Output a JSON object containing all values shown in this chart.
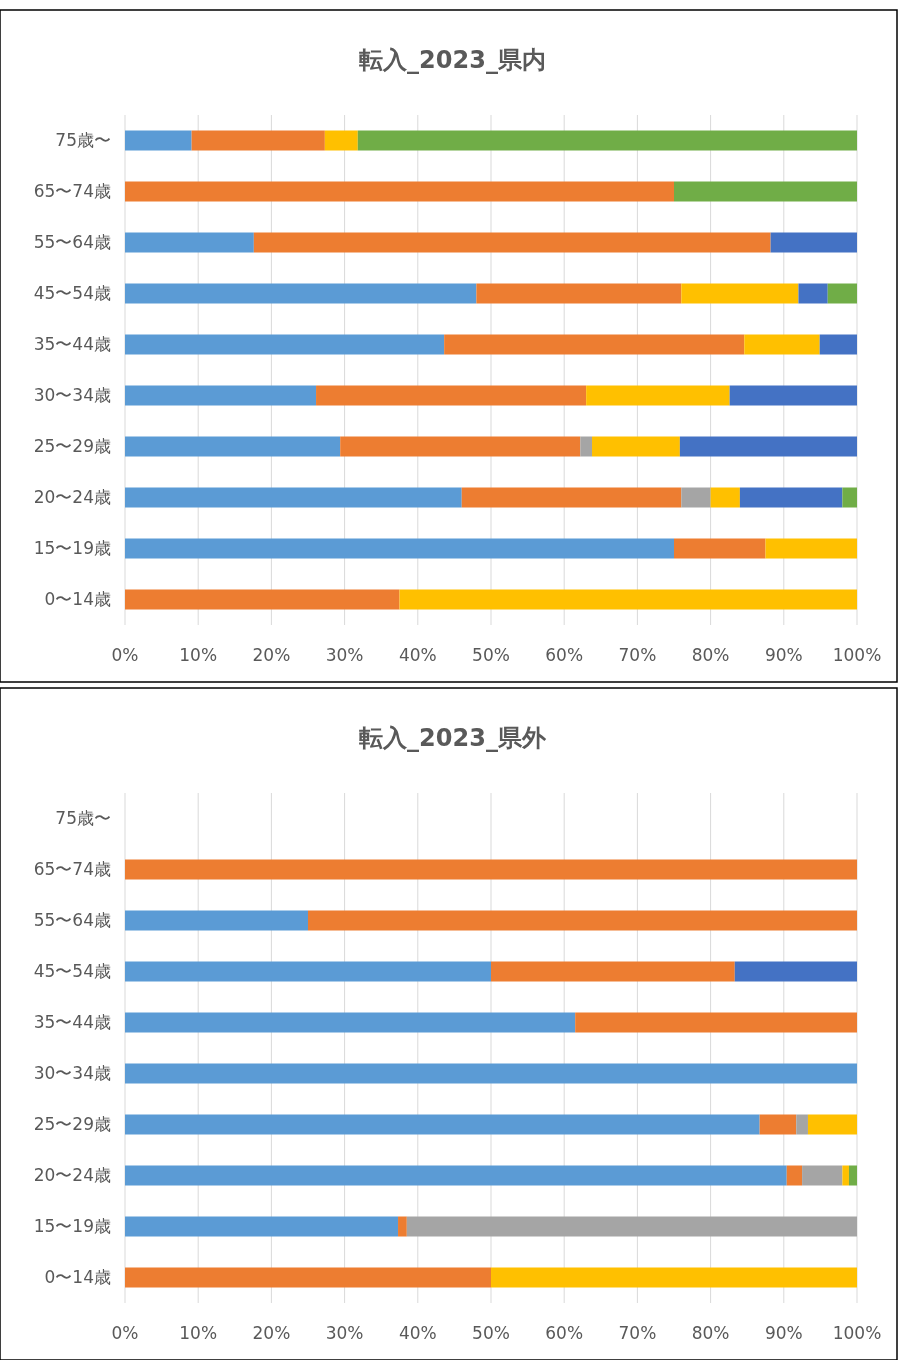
{
  "chart_data": [
    {
      "type": "bar",
      "title": "転入_2023_県内",
      "orientation": "horizontal",
      "stacked": true,
      "grid": "x",
      "xlim": [
        0,
        100
      ],
      "xticks": [
        {
          "value": 0,
          "label": "0%"
        },
        {
          "value": 10,
          "label": "10%"
        },
        {
          "value": 20,
          "label": "20%"
        },
        {
          "value": 30,
          "label": "30%"
        },
        {
          "value": 40,
          "label": "40%"
        },
        {
          "value": 50,
          "label": "50%"
        },
        {
          "value": 60,
          "label": "60%"
        },
        {
          "value": 70,
          "label": "70%"
        },
        {
          "value": 80,
          "label": "80%"
        },
        {
          "value": 90,
          "label": "90%"
        },
        {
          "value": 100,
          "label": "100%"
        }
      ],
      "categories": [
        "75歳〜",
        "65〜74歳",
        "55〜64歳",
        "45〜54歳",
        "35〜44歳",
        "30〜34歳",
        "25〜29歳",
        "20〜24歳",
        "15〜19歳",
        "0〜14歳"
      ],
      "series": [
        {
          "color": "#5b9bd5",
          "values": [
            9.1,
            null,
            17.6,
            48,
            43.6,
            26.1,
            29.4,
            46,
            75,
            null
          ]
        },
        {
          "color": "#ed7d31",
          "values": [
            18.2,
            75,
            70.6,
            28,
            41,
            36.9,
            32.8,
            30,
            12.5,
            37.5
          ]
        },
        {
          "color": "#a5a5a5",
          "values": [
            null,
            null,
            null,
            null,
            null,
            null,
            1.6,
            4,
            null,
            null
          ]
        },
        {
          "color": "#ffc000",
          "values": [
            4.5,
            null,
            null,
            16,
            10.3,
            19.6,
            12,
            4,
            12.5,
            62.5
          ]
        },
        {
          "color": "#4472c4",
          "values": [
            null,
            null,
            11.8,
            4,
            5.1,
            17.4,
            24.2,
            14,
            null,
            null
          ]
        },
        {
          "color": "#70ad47",
          "values": [
            68.2,
            25,
            null,
            4,
            null,
            null,
            null,
            2,
            null,
            null
          ]
        }
      ]
    },
    {
      "type": "bar",
      "title": "転入_2023_県外",
      "orientation": "horizontal",
      "stacked": true,
      "grid": "x",
      "xlim": [
        0,
        100
      ],
      "xticks": [
        {
          "value": 0,
          "label": "0%"
        },
        {
          "value": 10,
          "label": "10%"
        },
        {
          "value": 20,
          "label": "20%"
        },
        {
          "value": 30,
          "label": "30%"
        },
        {
          "value": 40,
          "label": "40%"
        },
        {
          "value": 50,
          "label": "50%"
        },
        {
          "value": 60,
          "label": "60%"
        },
        {
          "value": 70,
          "label": "70%"
        },
        {
          "value": 80,
          "label": "80%"
        },
        {
          "value": 90,
          "label": "90%"
        },
        {
          "value": 100,
          "label": "100%"
        }
      ],
      "categories": [
        "75歳〜",
        "65〜74歳",
        "55〜64歳",
        "45〜54歳",
        "35〜44歳",
        "30〜34歳",
        "25〜29歳",
        "20〜24歳",
        "15〜19歳",
        "0〜14歳"
      ],
      "series": [
        {
          "color": "#5b9bd5",
          "values": [
            null,
            null,
            25,
            50,
            61.5,
            100,
            86.7,
            90.4,
            37.3,
            null
          ]
        },
        {
          "color": "#ed7d31",
          "values": [
            null,
            100,
            75,
            33.3,
            38.5,
            null,
            5,
            2.1,
            1.2,
            50
          ]
        },
        {
          "color": "#a5a5a5",
          "values": [
            null,
            null,
            null,
            null,
            null,
            null,
            1.6,
            5.5,
            61.5,
            null
          ]
        },
        {
          "color": "#ffc000",
          "values": [
            null,
            null,
            null,
            null,
            null,
            null,
            6.7,
            0.9,
            null,
            50
          ]
        },
        {
          "color": "#4472c4",
          "values": [
            null,
            null,
            null,
            16.7,
            null,
            null,
            null,
            null,
            null,
            null
          ]
        },
        {
          "color": "#70ad47",
          "values": [
            null,
            null,
            null,
            null,
            null,
            null,
            null,
            1.1,
            null,
            null
          ]
        }
      ]
    }
  ]
}
